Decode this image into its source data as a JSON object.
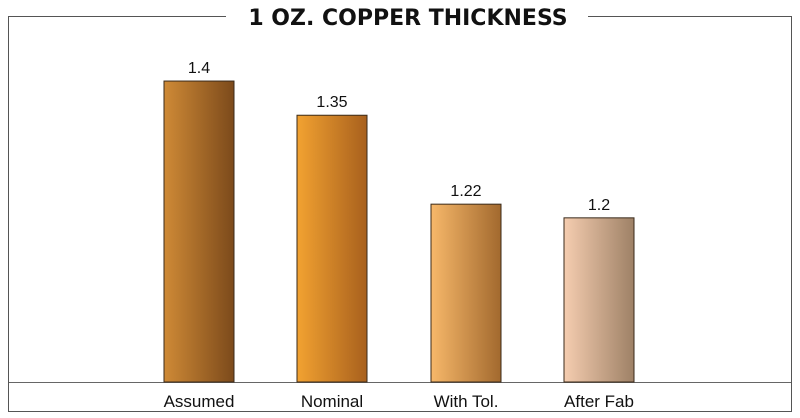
{
  "chart_data": {
    "type": "bar",
    "title": "1 OZ. COPPER THICKNESS",
    "categories": [
      "Assumed",
      "Nominal",
      "With Tol.",
      "After Fab"
    ],
    "values": [
      1.4,
      1.35,
      1.22,
      1.2
    ],
    "value_labels": [
      "1.4",
      "1.35",
      "1.22",
      "1.2"
    ],
    "ylim": [
      0.96,
      1.46
    ],
    "grid": false,
    "legend": "none",
    "bar_colors": [
      {
        "light": "#cf8a36",
        "dark": "#7c4a1b"
      },
      {
        "light": "#f2a231",
        "dark": "#a8601d"
      },
      {
        "light": "#f7b86a",
        "dark": "#a2692e"
      },
      {
        "light": "#f5cdb0",
        "dark": "#9e8166"
      }
    ]
  }
}
